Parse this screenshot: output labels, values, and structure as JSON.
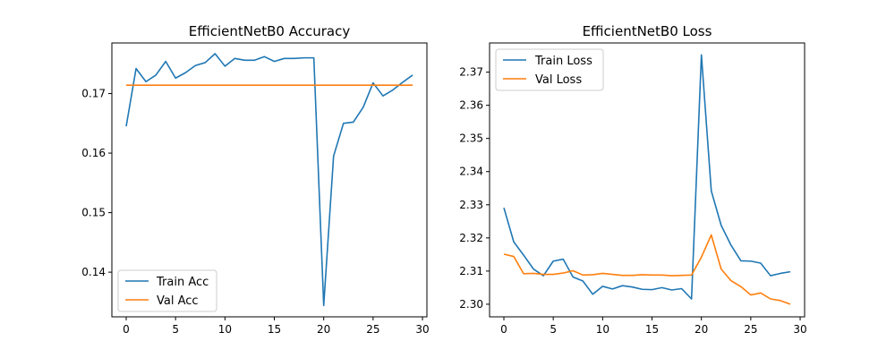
{
  "chart_data": [
    {
      "type": "line",
      "title": "EfficientNetB0 Accuracy",
      "xlabel": "",
      "ylabel": "",
      "xlim": [
        -1.45,
        30.45
      ],
      "ylim": [
        0.1325,
        0.1785
      ],
      "x_ticks": [
        0,
        5,
        10,
        15,
        20,
        25,
        30
      ],
      "y_ticks": [
        0.14,
        0.15,
        0.16,
        0.17
      ],
      "y_tick_labels": [
        "0.14",
        "0.15",
        "0.16",
        "0.17"
      ],
      "grid": false,
      "legend": "lower-left",
      "x": [
        0,
        1,
        2,
        3,
        4,
        5,
        6,
        7,
        8,
        9,
        10,
        11,
        12,
        13,
        14,
        15,
        16,
        17,
        18,
        19,
        20,
        21,
        22,
        23,
        24,
        25,
        26,
        27,
        28,
        29
      ],
      "series": [
        {
          "name": "Train Acc",
          "color": "#1f77b4",
          "values": [
            0.1645,
            0.1742,
            0.172,
            0.1731,
            0.1754,
            0.1726,
            0.1735,
            0.1747,
            0.1752,
            0.1767,
            0.1746,
            0.1759,
            0.1756,
            0.1756,
            0.1762,
            0.1754,
            0.1759,
            0.1759,
            0.176,
            0.176,
            0.1344,
            0.1595,
            0.165,
            0.1652,
            0.1677,
            0.1718,
            0.1696,
            0.1706,
            0.1719,
            0.1731
          ]
        },
        {
          "name": "Val Acc",
          "color": "#ff7f0e",
          "values": [
            0.1714,
            0.1714,
            0.1714,
            0.1714,
            0.1714,
            0.1714,
            0.1714,
            0.1714,
            0.1714,
            0.1714,
            0.1714,
            0.1714,
            0.1714,
            0.1714,
            0.1714,
            0.1714,
            0.1714,
            0.1714,
            0.1714,
            0.1714,
            0.1714,
            0.1714,
            0.1714,
            0.1714,
            0.1714,
            0.1714,
            0.1714,
            0.1714,
            0.1714,
            0.1714
          ]
        }
      ]
    },
    {
      "type": "line",
      "title": "EfficientNetB0 Loss",
      "xlabel": "",
      "ylabel": "",
      "xlim": [
        -1.45,
        30.45
      ],
      "ylim": [
        2.2962,
        2.3788
      ],
      "x_ticks": [
        0,
        5,
        10,
        15,
        20,
        25,
        30
      ],
      "y_ticks": [
        2.3,
        2.31,
        2.32,
        2.33,
        2.34,
        2.35,
        2.36,
        2.37
      ],
      "y_tick_labels": [
        "2.30",
        "2.31",
        "2.32",
        "2.33",
        "2.34",
        "2.35",
        "2.36",
        "2.37"
      ],
      "grid": false,
      "legend": "upper-left",
      "x": [
        0,
        1,
        2,
        3,
        4,
        5,
        6,
        7,
        8,
        9,
        10,
        11,
        12,
        13,
        14,
        15,
        16,
        17,
        18,
        19,
        20,
        21,
        22,
        23,
        24,
        25,
        26,
        27,
        28,
        29
      ],
      "series": [
        {
          "name": "Train Loss",
          "color": "#1f77b4",
          "values": [
            2.3291,
            2.3188,
            2.3148,
            2.3106,
            2.3086,
            2.313,
            2.3136,
            2.3082,
            2.307,
            2.303,
            2.3054,
            2.3046,
            2.3056,
            2.3052,
            2.3045,
            2.3044,
            2.305,
            2.3043,
            2.3047,
            2.3016,
            2.3752,
            2.3342,
            2.3238,
            2.3178,
            2.3131,
            2.313,
            2.3124,
            2.3086,
            2.3093,
            2.3098
          ]
        },
        {
          "name": "Val Loss",
          "color": "#ff7f0e",
          "values": [
            2.3151,
            2.3144,
            2.3092,
            2.3093,
            2.309,
            2.309,
            2.3094,
            2.3101,
            2.3088,
            2.3089,
            2.3093,
            2.309,
            2.3087,
            2.3087,
            2.3089,
            2.3088,
            2.3088,
            2.3086,
            2.3087,
            2.3088,
            2.3142,
            2.3209,
            2.3106,
            2.3071,
            2.3053,
            2.3028,
            2.3034,
            2.3016,
            2.3011,
            2.3
          ]
        }
      ]
    }
  ]
}
